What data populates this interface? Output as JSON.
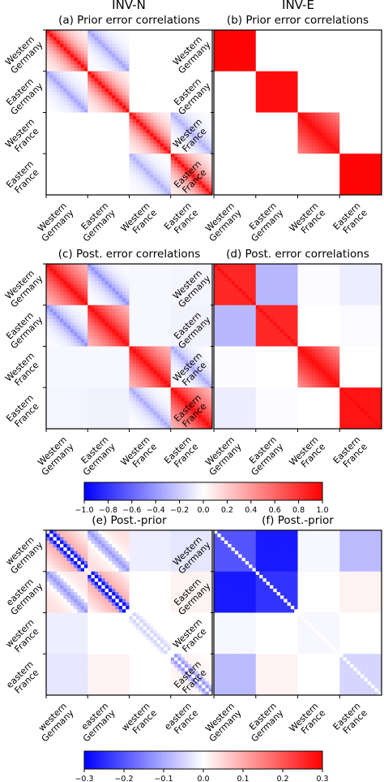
{
  "column_titles": [
    "INV-N",
    "INV-E"
  ],
  "colors": {
    "negative": "#0000ff",
    "neutral": "#ffffff",
    "positive": "#ff0000",
    "frame": "#000000"
  },
  "chart_data": [
    {
      "type": "heatmap",
      "id": "a",
      "title": "(a) Prior error correlations",
      "regions": [
        "Western Germany",
        "Eastern Germany",
        "Western France",
        "Eastern France"
      ],
      "block_size": 12,
      "value_range": [
        -1.0,
        1.0
      ],
      "diagonal_blocks": {
        "model": "banded",
        "diag": 0.95,
        "decay": 0.78
      },
      "off_diagonal_blocks": [
        {
          "pair": [
            0,
            1
          ],
          "model": "banded",
          "diag": -0.35,
          "decay": 0.72
        },
        {
          "pair": [
            2,
            3
          ],
          "model": "banded",
          "diag": -0.3,
          "decay": 0.72
        }
      ]
    },
    {
      "type": "heatmap",
      "id": "b",
      "title": "(b) Prior error correlations",
      "regions": [
        "Western Germany",
        "Eastern Germany",
        "Western France",
        "Eastern France"
      ],
      "block_size": 12,
      "value_range": [
        -1.0,
        1.0
      ],
      "diagonal_blocks": [
        {
          "model": "uniform",
          "value": 0.98
        },
        {
          "model": "uniform",
          "value": 0.95
        },
        {
          "model": "gradient",
          "diag": 0.95,
          "min": 0.5
        },
        {
          "model": "uniform",
          "value": 0.98
        }
      ],
      "off_diagonal_blocks": []
    },
    {
      "type": "heatmap",
      "id": "c",
      "title": "(c) Post. error correlations",
      "regions": [
        "Western Germany",
        "Eastern Germany",
        "Western France",
        "Eastern France"
      ],
      "block_size": 12,
      "value_range": [
        -1.0,
        1.0
      ],
      "diagonal_blocks": {
        "model": "banded",
        "diag": 0.95,
        "decay": 0.9,
        "floor": 0.08
      },
      "off_diagonal_blocks": [
        {
          "pair": [
            0,
            1
          ],
          "model": "banded",
          "diag": -0.42,
          "decay": 0.72
        },
        {
          "pair": [
            2,
            3
          ],
          "model": "banded",
          "diag": -0.32,
          "decay": 0.72
        },
        {
          "pair": [
            0,
            2
          ],
          "model": "uniform",
          "value": -0.03
        },
        {
          "pair": [
            0,
            3
          ],
          "model": "uniform",
          "value": -0.04
        },
        {
          "pair": [
            1,
            2
          ],
          "model": "uniform",
          "value": -0.03
        },
        {
          "pair": [
            1,
            3
          ],
          "model": "uniform",
          "value": -0.05
        }
      ]
    },
    {
      "type": "heatmap",
      "id": "d",
      "title": "(d) Post. error correlations",
      "regions": [
        "Western Germany",
        "Eastern Germany",
        "Western France",
        "Eastern France"
      ],
      "block_size": 12,
      "value_range": [
        -1.0,
        1.0
      ],
      "diagonal_blocks": [
        {
          "model": "uniform",
          "value": 0.85,
          "diag": 0.95
        },
        {
          "model": "uniform",
          "value": 0.85,
          "diag": 0.95
        },
        {
          "model": "gradient",
          "diag": 0.95,
          "min": 0.45
        },
        {
          "model": "uniform",
          "value": 0.92,
          "diag": 0.97
        }
      ],
      "off_diagonal_blocks": [
        {
          "pair": [
            0,
            1
          ],
          "model": "uniform",
          "value": -0.28
        },
        {
          "pair": [
            0,
            3
          ],
          "model": "uniform",
          "value": -0.07
        },
        {
          "pair": [
            1,
            3
          ],
          "model": "uniform",
          "value": -0.02
        },
        {
          "pair": [
            0,
            2
          ],
          "model": "uniform",
          "value": -0.01
        }
      ]
    },
    {
      "type": "colorbar",
      "id": "cb1",
      "colors": [
        "#0000ff",
        "#ffffff",
        "#ff0000"
      ],
      "range": [
        -1.0,
        1.0
      ],
      "tick_labels": [
        "−1.0",
        "−0.8",
        "−0.6",
        "−0.4",
        "−0.2",
        "0.0",
        "0.2",
        "0.4",
        "0.6",
        "0.8",
        "1.0"
      ]
    },
    {
      "type": "heatmap",
      "id": "e",
      "title": "(e) Post.-prior",
      "regions": [
        "western Germany",
        "eastern Germany",
        "western France",
        "eastern France"
      ],
      "block_size": 12,
      "value_range": [
        -0.3,
        0.3
      ],
      "diagonal_blocks": [
        {
          "model": "difference",
          "diag": 0.0,
          "near": -0.28,
          "far": 0.12
        },
        {
          "model": "difference",
          "diag": 0.0,
          "near": -0.28,
          "far": 0.12
        },
        {
          "model": "difference",
          "diag": 0.0,
          "near": -0.05,
          "far": 0.0
        },
        {
          "model": "difference",
          "diag": 0.0,
          "near": -0.12,
          "far": 0.02
        }
      ],
      "off_diagonal_blocks": [
        {
          "pair": [
            0,
            1
          ],
          "model": "banded",
          "diag": -0.12,
          "decay": 0.7,
          "offset": 0.04
        },
        {
          "pair": [
            0,
            2
          ],
          "model": "uniform",
          "value": -0.02
        },
        {
          "pair": [
            0,
            3
          ],
          "model": "uniform",
          "value": -0.03
        },
        {
          "pair": [
            1,
            3
          ],
          "model": "uniform",
          "value": 0.015
        }
      ]
    },
    {
      "type": "heatmap",
      "id": "f",
      "title": "(f) Post.-prior",
      "regions": [
        "Western Germany",
        "Eastern Germany",
        "Western France",
        "Eastern France"
      ],
      "block_size": 12,
      "value_range": [
        -0.3,
        0.3
      ],
      "diagonal_blocks": [
        {
          "model": "uniform",
          "value": -0.2,
          "diag": 0.0
        },
        {
          "model": "uniform",
          "value": -0.24,
          "diag": 0.0
        },
        {
          "model": "uniform",
          "value": -0.01,
          "diag": 0.0
        },
        {
          "model": "uniform",
          "value": -0.05,
          "diag": 0.0
        }
      ],
      "off_diagonal_blocks": [
        {
          "pair": [
            0,
            1
          ],
          "model": "uniform",
          "value": -0.27
        },
        {
          "pair": [
            0,
            3
          ],
          "model": "uniform",
          "value": -0.08
        },
        {
          "pair": [
            1,
            3
          ],
          "model": "uniform",
          "value": 0.015
        },
        {
          "pair": [
            0,
            2
          ],
          "model": "uniform",
          "value": -0.01
        }
      ]
    },
    {
      "type": "colorbar",
      "id": "cb2",
      "colors": [
        "#0000ff",
        "#ffffff",
        "#ff0000"
      ],
      "range": [
        -0.3,
        0.3
      ],
      "tick_labels": [
        "−0.3",
        "−0.2",
        "−0.1",
        "0.0",
        "0.1",
        "0.2",
        "0.3"
      ]
    }
  ]
}
